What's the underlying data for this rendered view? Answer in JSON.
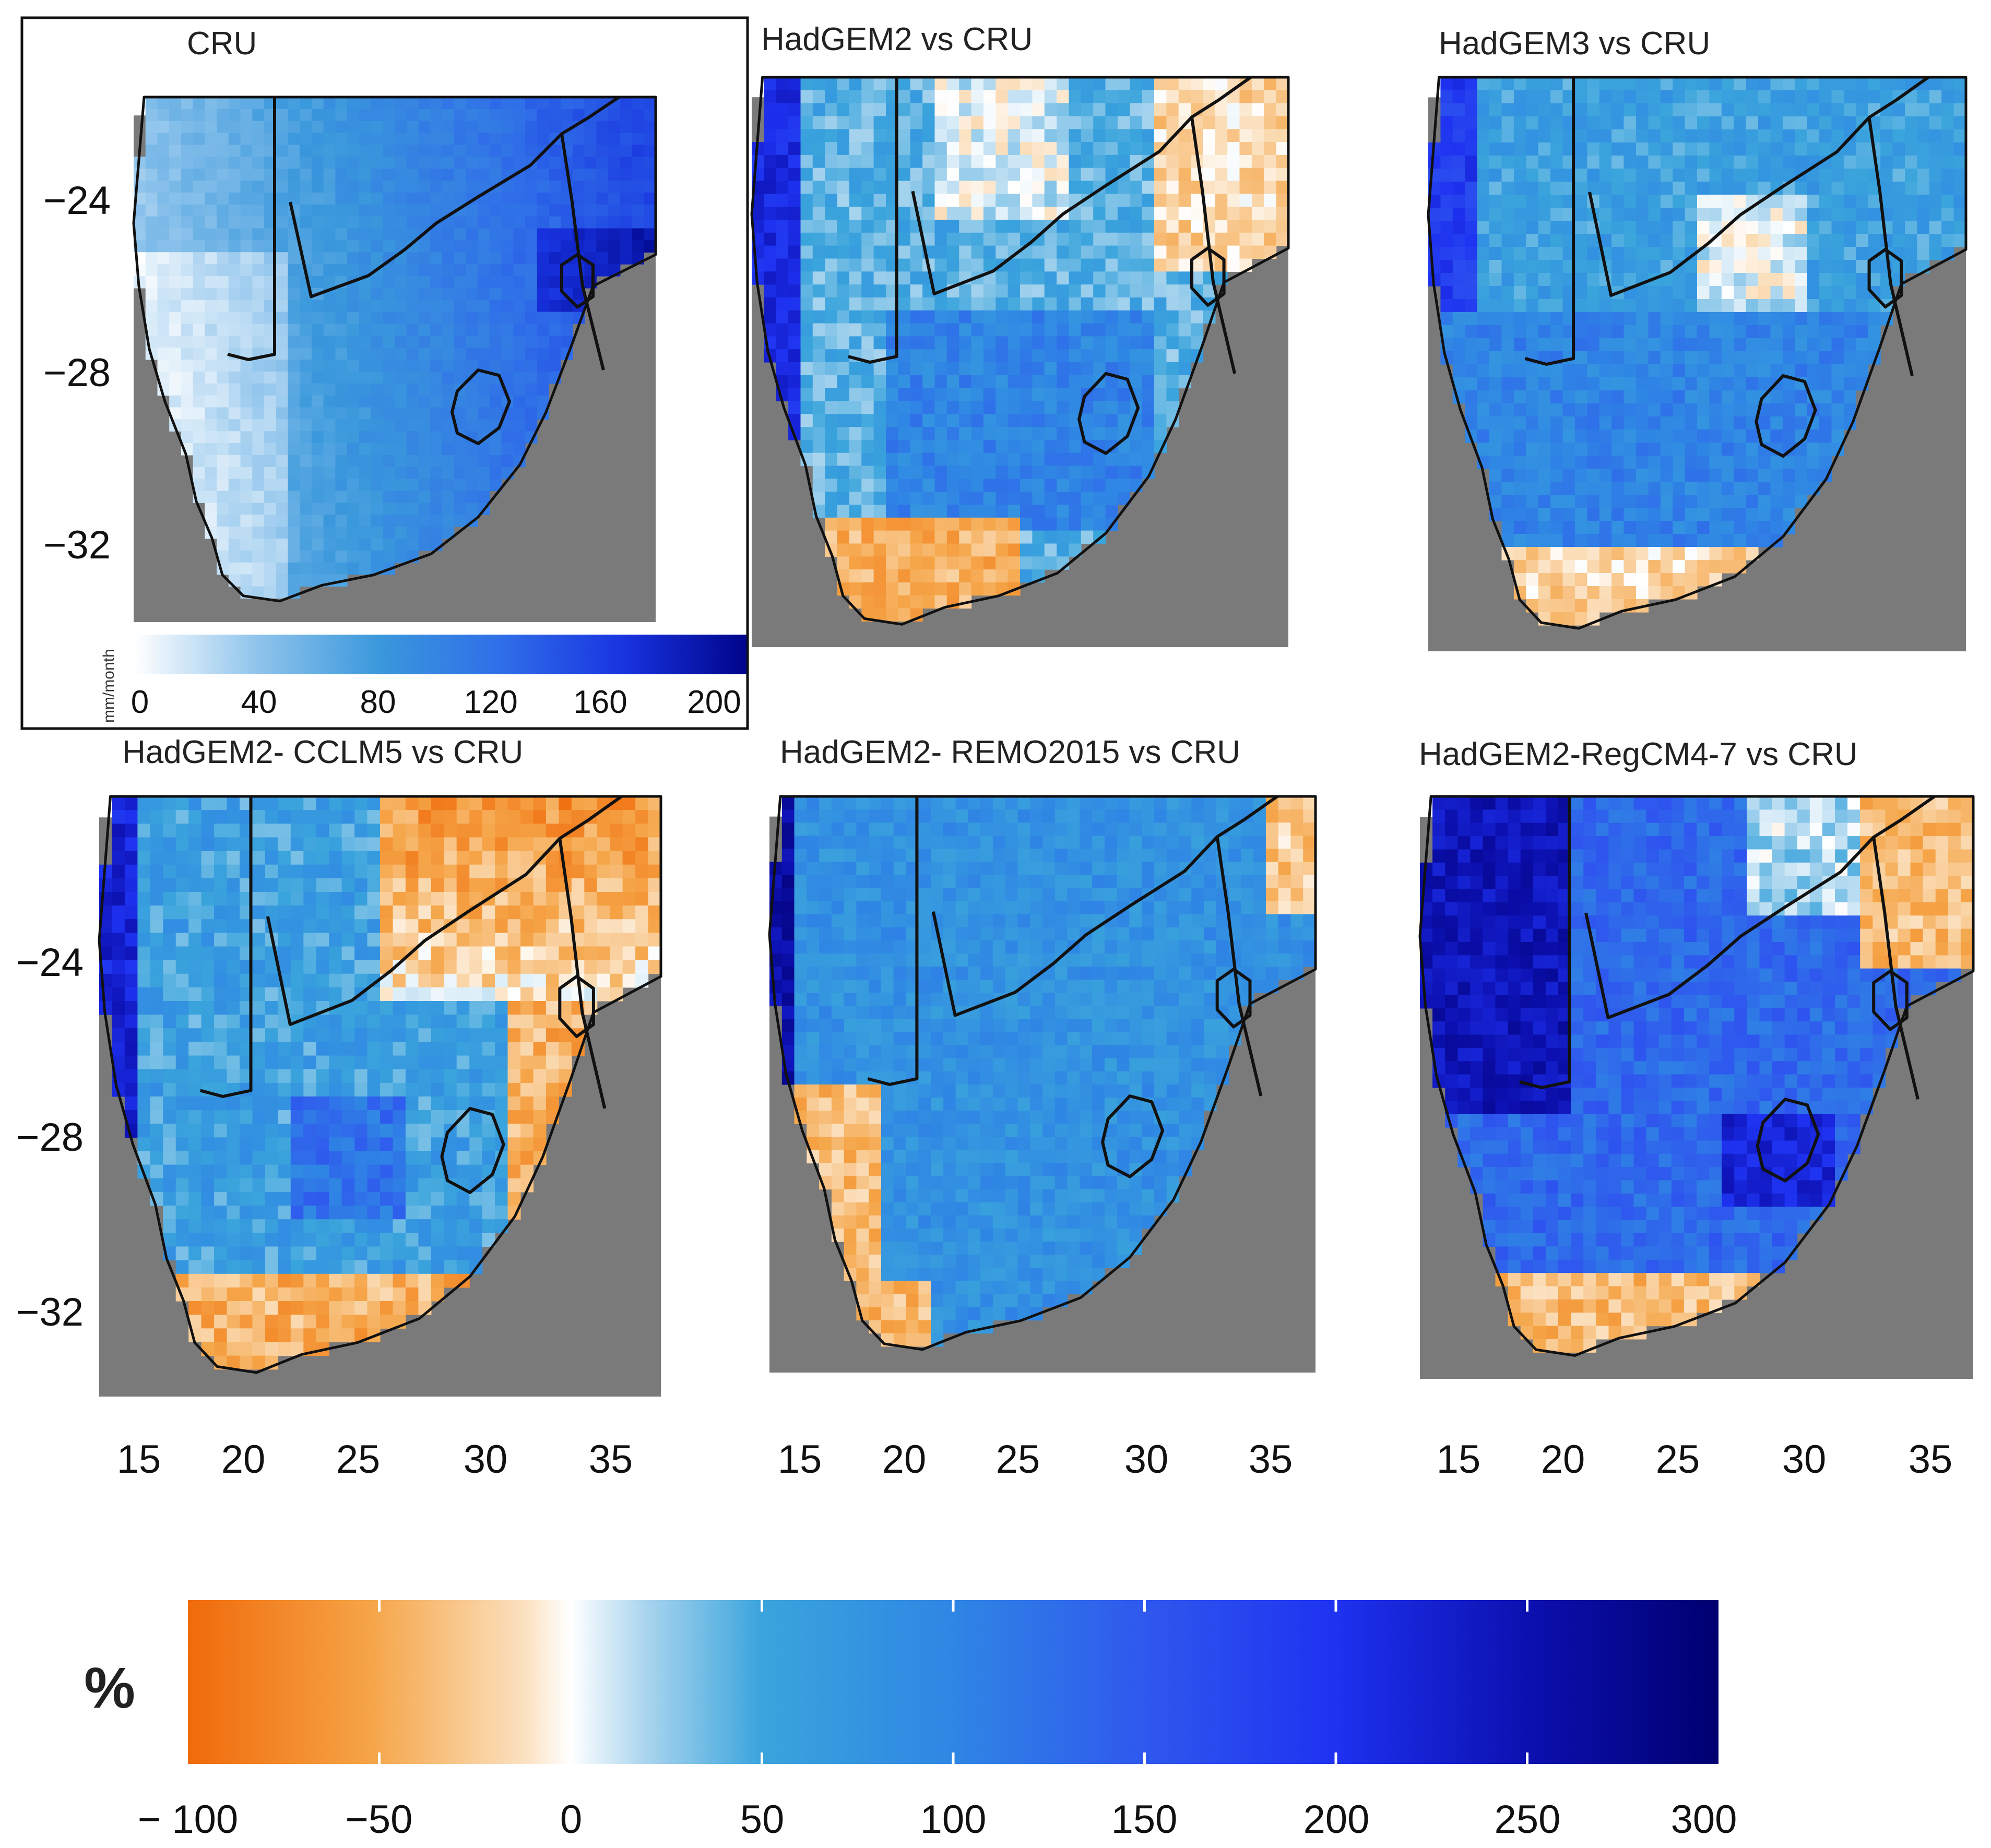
{
  "figure": {
    "panels": [
      {
        "id": "cru",
        "title": "CRU",
        "kind": "absolute"
      },
      {
        "id": "hadgem2",
        "title": "HadGEM2 vs CRU",
        "kind": "bias",
        "pattern": "hadgem2"
      },
      {
        "id": "hadgem3",
        "title": "HadGEM3 vs CRU",
        "kind": "bias",
        "pattern": "hadgem3"
      },
      {
        "id": "cclm5",
        "title": "HadGEM2- CCLM5 vs CRU",
        "kind": "bias",
        "pattern": "cclm5"
      },
      {
        "id": "remo",
        "title": "HadGEM2- REMO2015 vs CRU",
        "kind": "bias",
        "pattern": "remo"
      },
      {
        "id": "regcm",
        "title": "HadGEM2-RegCM4-7 vs CRU",
        "kind": "bias",
        "pattern": "regcm"
      }
    ],
    "y_ticks": [
      "−24",
      "−28",
      "−32"
    ],
    "x_ticks": [
      "15",
      "20",
      "25",
      "30",
      "35"
    ],
    "cru_colorbar": {
      "unit": "mm/month",
      "ticks": [
        "0",
        "40",
        "80",
        "120",
        "160",
        "200"
      ],
      "range": [
        0,
        200
      ]
    },
    "bias_colorbar": {
      "unit": "%",
      "ticks": [
        "− 100",
        "−50",
        "0",
        "50",
        "100",
        "150",
        "200",
        "250",
        "300"
      ],
      "range": [
        -100,
        300
      ]
    },
    "colors": {
      "ocean": "#7a7a7a",
      "dry_orange": "#f0720f",
      "wet_navy": "#0a0a7e",
      "neutral": "#ffffff"
    }
  }
}
